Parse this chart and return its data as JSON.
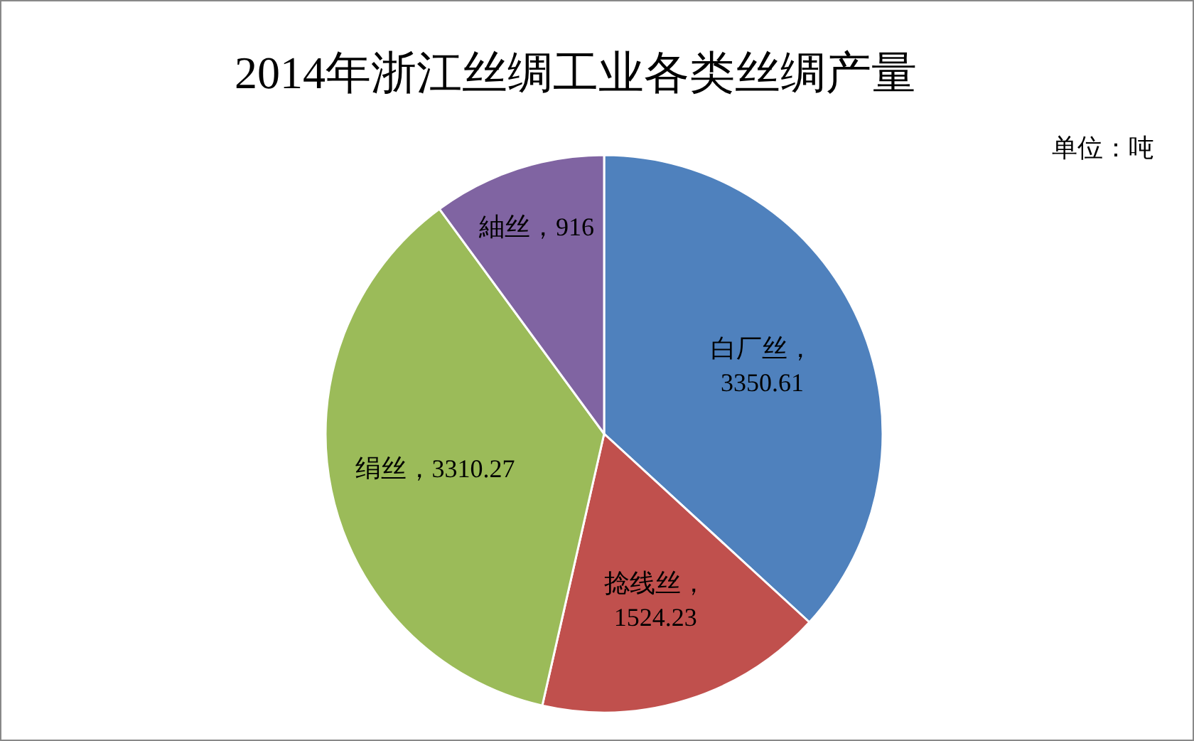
{
  "chart_data": {
    "type": "pie",
    "title": "2014年浙江丝绸工业各类丝绸产量",
    "annotations": [
      "单位：吨"
    ],
    "categories": [
      "白厂丝",
      "捻线丝",
      "绢丝",
      "紬丝"
    ],
    "values": [
      3350.61,
      1524.23,
      3310.27,
      916
    ],
    "colors": [
      "#4f81bd",
      "#c0504d",
      "#9bbb59",
      "#8064a2"
    ],
    "value_labels": [
      "，\n3350.61",
      "，\n1524.23",
      "，3310.27",
      "，916"
    ]
  }
}
